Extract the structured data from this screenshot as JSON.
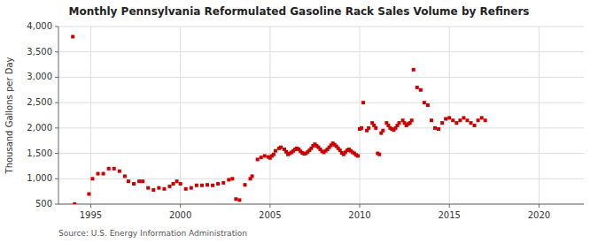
{
  "chart_data": {
    "type": "scatter",
    "title": "Monthly Pennsylvania Reformulated Gasoline Rack Sales Volume by Refiners",
    "ylabel": "Thousand Gallons per Day",
    "annotations": [
      "Source: U.S. Energy Information Administration"
    ],
    "color": "#cc0000",
    "marker": "square",
    "grid": true,
    "xlim": [
      1993.2,
      2022.5
    ],
    "ylim": [
      500,
      4000
    ],
    "xticks": [
      1995,
      2000,
      2005,
      2010,
      2015,
      2020
    ],
    "yticks": [
      500,
      {
        "value": 1000,
        "label": "1,000"
      },
      {
        "value": 1500,
        "label": "1,500"
      },
      {
        "value": 2000,
        "label": "2,000"
      },
      {
        "value": 2500,
        "label": "2,500"
      },
      {
        "value": 3000,
        "label": "3,000"
      },
      {
        "value": 3500,
        "label": "3,500"
      },
      {
        "value": 4000,
        "label": "4,000"
      }
    ],
    "x": [
      1994.0,
      1994.1,
      1994.9,
      1995.1,
      1995.4,
      1995.7,
      1996.0,
      1996.3,
      1996.6,
      1996.9,
      1997.1,
      1997.4,
      1997.7,
      1997.9,
      1998.2,
      1998.5,
      1998.8,
      1999.1,
      1999.4,
      1999.6,
      1999.8,
      2000.0,
      2000.3,
      2000.6,
      2000.9,
      2001.2,
      2001.5,
      2001.8,
      2002.1,
      2002.4,
      2002.7,
      2002.9,
      2003.1,
      2003.3,
      2003.6,
      2003.9,
      2004.0,
      2004.3,
      2004.5,
      2004.7,
      2004.9,
      2005.0,
      2005.1,
      2005.2,
      2005.3,
      2005.5,
      2005.6,
      2005.8,
      2005.9,
      2006.0,
      2006.1,
      2006.2,
      2006.3,
      2006.4,
      2006.5,
      2006.6,
      2006.7,
      2006.8,
      2006.9,
      2007.0,
      2007.1,
      2007.2,
      2007.3,
      2007.4,
      2007.5,
      2007.6,
      2007.7,
      2007.8,
      2007.9,
      2008.0,
      2008.1,
      2008.2,
      2008.3,
      2008.4,
      2008.5,
      2008.6,
      2008.7,
      2008.8,
      2008.9,
      2009.0,
      2009.1,
      2009.2,
      2009.3,
      2009.4,
      2009.5,
      2009.6,
      2009.7,
      2009.8,
      2009.9,
      2010.0,
      2010.1,
      2010.2,
      2010.4,
      2010.5,
      2010.7,
      2010.8,
      2010.9,
      2011.0,
      2011.1,
      2011.2,
      2011.3,
      2011.5,
      2011.6,
      2011.7,
      2011.8,
      2011.9,
      2012.0,
      2012.1,
      2012.2,
      2012.4,
      2012.5,
      2012.6,
      2012.7,
      2012.8,
      2012.9,
      2013.0,
      2013.2,
      2013.4,
      2013.6,
      2013.8,
      2014.0,
      2014.2,
      2014.4,
      2014.6,
      2014.8,
      2015.0,
      2015.2,
      2015.4,
      2015.6,
      2015.8,
      2016.0,
      2016.2,
      2016.4,
      2016.6,
      2016.8,
      2017.0
    ],
    "values": [
      3800,
      500,
      700,
      1000,
      1100,
      1100,
      1200,
      1200,
      1150,
      1050,
      950,
      900,
      950,
      950,
      820,
      780,
      820,
      800,
      850,
      900,
      950,
      900,
      800,
      820,
      870,
      870,
      880,
      870,
      900,
      920,
      980,
      1000,
      600,
      580,
      880,
      1000,
      1050,
      1380,
      1420,
      1450,
      1430,
      1410,
      1450,
      1480,
      1550,
      1600,
      1620,
      1580,
      1530,
      1480,
      1500,
      1520,
      1550,
      1580,
      1600,
      1580,
      1540,
      1510,
      1490,
      1500,
      1530,
      1560,
      1600,
      1650,
      1680,
      1650,
      1620,
      1580,
      1540,
      1520,
      1550,
      1580,
      1620,
      1660,
      1700,
      1670,
      1640,
      1600,
      1560,
      1510,
      1480,
      1520,
      1560,
      1580,
      1550,
      1520,
      1500,
      1470,
      1450,
      1980,
      2000,
      2500,
      1950,
      2000,
      2100,
      2050,
      2000,
      1500,
      1480,
      1900,
      1950,
      2100,
      2050,
      2000,
      1980,
      1960,
      2000,
      2050,
      2100,
      2150,
      2100,
      2050,
      2080,
      2100,
      2150,
      3150,
      2800,
      2750,
      2500,
      2450,
      2150,
      2000,
      1980,
      2100,
      2180,
      2200,
      2150,
      2100,
      2150,
      2200,
      2150,
      2100,
      2050,
      2150,
      2200,
      2150
    ]
  }
}
